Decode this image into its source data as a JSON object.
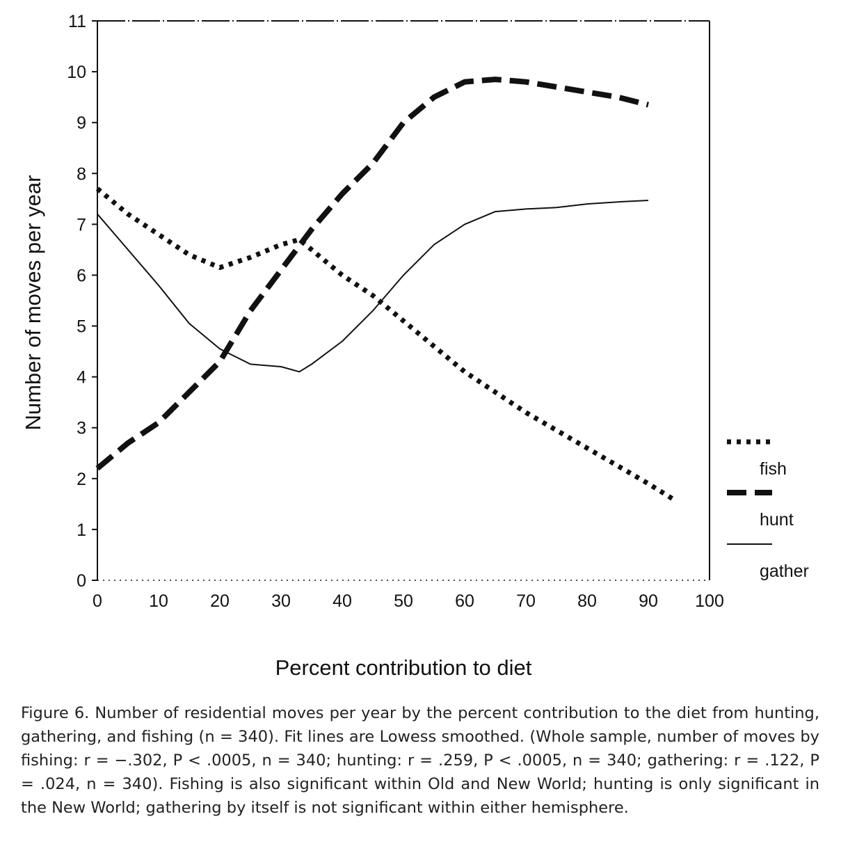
{
  "chart_data": {
    "type": "line",
    "xlabel": "Percent contribution to diet",
    "ylabel": "Number of moves per year",
    "xlim": [
      0,
      100
    ],
    "ylim": [
      0,
      11
    ],
    "xticks": [
      0,
      10,
      20,
      30,
      40,
      50,
      60,
      70,
      80,
      90,
      100
    ],
    "yticks": [
      0,
      1,
      2,
      3,
      4,
      5,
      6,
      7,
      8,
      9,
      10,
      11
    ],
    "legend_position": "right",
    "grid": false,
    "series": [
      {
        "name": "fish",
        "style": "dotted",
        "x": [
          0,
          5,
          10,
          15,
          20,
          25,
          30,
          33,
          35,
          40,
          45,
          50,
          55,
          60,
          65,
          70,
          75,
          80,
          85,
          90,
          94
        ],
        "y": [
          7.7,
          7.2,
          6.8,
          6.4,
          6.15,
          6.35,
          6.6,
          6.7,
          6.5,
          6.0,
          5.6,
          5.1,
          4.6,
          4.1,
          3.7,
          3.3,
          2.95,
          2.6,
          2.25,
          1.9,
          1.6
        ]
      },
      {
        "name": "hunt",
        "style": "dashed",
        "x": [
          0,
          5,
          10,
          15,
          20,
          25,
          30,
          35,
          40,
          45,
          50,
          55,
          60,
          65,
          70,
          75,
          80,
          85,
          90
        ],
        "y": [
          2.2,
          2.7,
          3.1,
          3.7,
          4.3,
          5.3,
          6.1,
          6.9,
          7.6,
          8.2,
          9.0,
          9.5,
          9.8,
          9.85,
          9.8,
          9.7,
          9.6,
          9.5,
          9.35
        ]
      },
      {
        "name": "gather",
        "style": "solid",
        "x": [
          0,
          5,
          10,
          15,
          20,
          25,
          30,
          33,
          35,
          40,
          45,
          50,
          55,
          60,
          65,
          70,
          75,
          80,
          85,
          90
        ],
        "y": [
          7.2,
          6.5,
          5.8,
          5.05,
          4.55,
          4.25,
          4.2,
          4.1,
          4.25,
          4.7,
          5.3,
          6.0,
          6.6,
          7.0,
          7.25,
          7.3,
          7.33,
          7.4,
          7.44,
          7.47
        ]
      }
    ]
  },
  "caption": {
    "text": "Figure 6. Number of residential moves per year by the percent contribution to the diet from hunting, gathering, and fishing (n = 340). Fit lines are Lowess smoothed. (Whole sample, number of moves by fishing: r = −.302, P < .0005, n = 340; hunting: r = .259, P < .0005, n = 340; gathering: r = .122, P = .024, n = 340). Fishing is also significant within Old and New World; hunting is only significant in the New World; gathering by itself is not significant within either hemisphere."
  }
}
